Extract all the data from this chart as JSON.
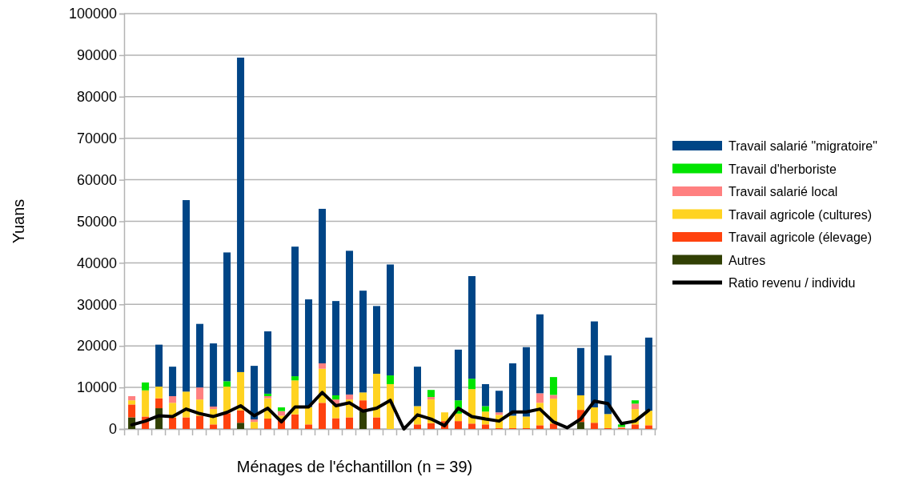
{
  "chart_data": {
    "type": "bar",
    "stacked": true,
    "xlabel": "Ménages de l'échantillon (n = 39)",
    "ylabel": "Yuans",
    "categories": [
      null,
      null,
      null,
      null,
      null,
      null,
      null,
      null,
      null,
      null,
      null,
      null,
      null,
      null,
      null,
      null,
      null,
      null,
      null,
      null,
      null,
      null,
      null,
      null,
      null,
      null,
      null,
      null,
      null,
      null,
      null,
      null,
      null,
      null,
      null,
      null,
      null,
      null,
      null
    ],
    "ylim": [
      0,
      100000
    ],
    "yticks": [
      0,
      10000,
      20000,
      30000,
      40000,
      50000,
      60000,
      70000,
      80000,
      90000,
      100000
    ],
    "grid": "y",
    "legend": "right",
    "series": [
      {
        "name": "Autres",
        "color": "#314004",
        "values": [
          2800,
          0,
          5000,
          0,
          0,
          0,
          0,
          0,
          1500,
          0,
          0,
          0,
          0,
          0,
          0,
          0,
          0,
          4300,
          0,
          0,
          0,
          0,
          0,
          0,
          0,
          0,
          0,
          0,
          0,
          0,
          0,
          0,
          0,
          1700,
          0,
          0,
          0,
          0,
          0
        ]
      },
      {
        "name": "Travail agricole (élevage)",
        "color": "#ff420e",
        "values": [
          3100,
          3000,
          2400,
          2700,
          2800,
          3200,
          1100,
          3800,
          3000,
          100,
          2500,
          2500,
          3500,
          1100,
          6300,
          2600,
          2800,
          2600,
          2800,
          0,
          null,
          1100,
          1400,
          1900,
          1900,
          1300,
          1100,
          200,
          200,
          200,
          900,
          1300,
          0,
          2900,
          1500,
          200,
          200,
          1100,
          900
        ]
      },
      {
        "name": "Travail agricole (cultures)",
        "color": "#ffd320",
        "values": [
          1000,
          6300,
          2800,
          3600,
          6200,
          3900,
          3700,
          6400,
          9200,
          1600,
          4900,
          700,
          8200,
          4200,
          8200,
          3300,
          4300,
          1900,
          10500,
          10800,
          0,
          4400,
          5700,
          2100,
          1800,
          8300,
          3100,
          3200,
          3000,
          2800,
          5400,
          6000,
          0,
          3500,
          3700,
          3400,
          100,
          3700,
          3500
        ]
      },
      {
        "name": "Travail salarié local",
        "color": "#ff8080",
        "values": [
          1000,
          0,
          0,
          1600,
          0,
          2900,
          600,
          0,
          0,
          600,
          500,
          1100,
          0,
          0,
          1300,
          1200,
          1200,
          0,
          0,
          0,
          0,
          0,
          600,
          0,
          0,
          0,
          0,
          600,
          0,
          0,
          2300,
          900,
          0,
          0,
          0,
          0,
          200,
          1300,
          0
        ]
      },
      {
        "name": "Travail d'herboriste",
        "color": "#00e400",
        "values": [
          0,
          1900,
          0,
          0,
          0,
          0,
          0,
          1300,
          0,
          0,
          600,
          900,
          1000,
          0,
          0,
          1000,
          0,
          0,
          0,
          2100,
          0,
          0,
          1700,
          0,
          3200,
          2500,
          1300,
          0,
          0,
          0,
          0,
          4300,
          0,
          0,
          0,
          0,
          600,
          800,
          0
        ]
      },
      {
        "name": "Travail salarié \"migratoire\"",
        "color": "#004586",
        "values": [
          0,
          0,
          10100,
          7100,
          46100,
          15300,
          15200,
          31000,
          75700,
          12900,
          15000,
          0,
          31200,
          25900,
          37200,
          22700,
          34600,
          24500,
          16300,
          26700,
          0,
          9500,
          0,
          0,
          12200,
          24700,
          5300,
          5200,
          12600,
          16700,
          19000,
          0,
          0,
          11400,
          20700,
          14100,
          0,
          0,
          17600
        ]
      },
      {
        "name": "Ratio revenu / individu",
        "type": "line",
        "color": "#000000",
        "values": [
          1000,
          1900,
          3200,
          3000,
          4800,
          3700,
          3000,
          4000,
          5600,
          3200,
          5000,
          1700,
          5300,
          5300,
          8800,
          5600,
          6300,
          4300,
          5000,
          6900,
          0,
          3400,
          2400,
          800,
          5000,
          3000,
          2400,
          1900,
          4100,
          4100,
          4800,
          1700,
          300,
          2400,
          6700,
          6100,
          1300,
          1900,
          4500
        ]
      }
    ]
  }
}
